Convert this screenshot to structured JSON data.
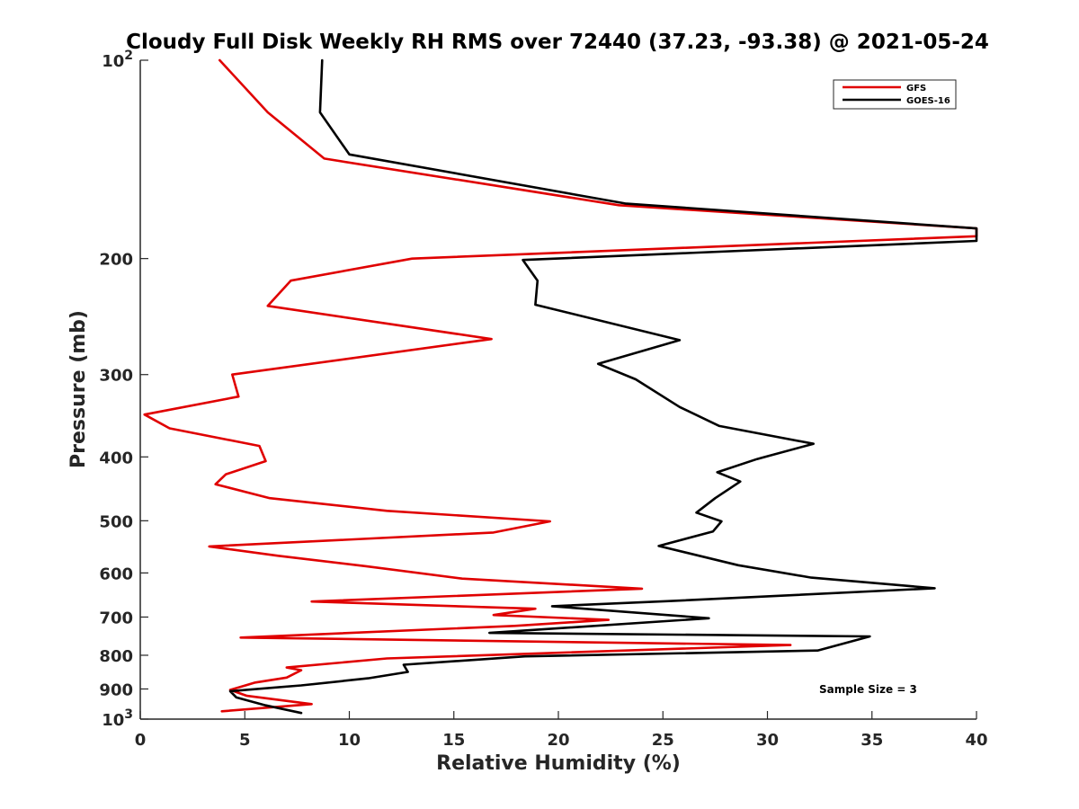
{
  "chart_data": {
    "type": "line",
    "title": "Cloudy Full Disk Weekly RH RMS over 72440 (37.23, -93.38) @ 2021-05-24",
    "xlabel": "Relative Humidity (%)",
    "ylabel": "Pressure (mb)",
    "xlim": [
      0,
      40
    ],
    "ylim": [
      100,
      1000
    ],
    "y_scale": "log",
    "y_reversed": true,
    "grid": false,
    "legend_position": "top-right",
    "x_ticks": [
      {
        "value": 0,
        "label": "0"
      },
      {
        "value": 5,
        "label": "5"
      },
      {
        "value": 10,
        "label": "10"
      },
      {
        "value": 15,
        "label": "15"
      },
      {
        "value": 20,
        "label": "20"
      },
      {
        "value": 25,
        "label": "25"
      },
      {
        "value": 30,
        "label": "30"
      },
      {
        "value": 35,
        "label": "35"
      },
      {
        "value": 40,
        "label": "40"
      }
    ],
    "y_ticks": [
      {
        "value": 100,
        "label": "10",
        "sup": "2"
      },
      {
        "value": 200,
        "label": "200",
        "sup": ""
      },
      {
        "value": 300,
        "label": "300",
        "sup": ""
      },
      {
        "value": 400,
        "label": "400",
        "sup": ""
      },
      {
        "value": 500,
        "label": "500",
        "sup": ""
      },
      {
        "value": 600,
        "label": "600",
        "sup": ""
      },
      {
        "value": 700,
        "label": "700",
        "sup": ""
      },
      {
        "value": 800,
        "label": "800",
        "sup": ""
      },
      {
        "value": 900,
        "label": "900",
        "sup": ""
      },
      {
        "value": 1000,
        "label": "10",
        "sup": "3"
      }
    ],
    "series": [
      {
        "name": "GFS",
        "color": "#e00000",
        "points": [
          [
            3.8,
            100
          ],
          [
            6.1,
            120
          ],
          [
            8.8,
            141
          ],
          [
            22.9,
            166
          ],
          [
            40,
            180
          ],
          [
            40,
            185
          ],
          [
            13.0,
            200
          ],
          [
            7.2,
            216
          ],
          [
            6.1,
            236
          ],
          [
            16.8,
            265
          ],
          [
            4.4,
            300
          ],
          [
            4.7,
            324
          ],
          [
            0.2,
            345
          ],
          [
            1.4,
            362
          ],
          [
            5.7,
            385
          ],
          [
            6.0,
            406
          ],
          [
            4.1,
            425
          ],
          [
            3.6,
            440
          ],
          [
            6.2,
            462
          ],
          [
            11.8,
            483
          ],
          [
            19.6,
            501
          ],
          [
            16.9,
            521
          ],
          [
            3.3,
            547
          ],
          [
            6.6,
            565
          ],
          [
            10.8,
            586
          ],
          [
            15.4,
            612
          ],
          [
            24.0,
            634
          ],
          [
            8.2,
            663
          ],
          [
            18.9,
            680
          ],
          [
            16.9,
            695
          ],
          [
            22.4,
            707
          ],
          [
            17.9,
            722
          ],
          [
            4.8,
            752
          ],
          [
            31.1,
            772
          ],
          [
            11.8,
            809
          ],
          [
            7.0,
            835
          ],
          [
            7.7,
            843
          ],
          [
            7.0,
            865
          ],
          [
            5.5,
            880
          ],
          [
            4.3,
            903
          ],
          [
            5.1,
            922
          ],
          [
            8.2,
            949
          ],
          [
            3.9,
            973
          ]
        ]
      },
      {
        "name": "GOES-16",
        "color": "#000000",
        "points": [
          [
            8.7,
            100
          ],
          [
            8.6,
            120
          ],
          [
            10.0,
            139
          ],
          [
            23.2,
            165
          ],
          [
            40,
            180
          ],
          [
            40,
            188
          ],
          [
            18.3,
            201
          ],
          [
            19.0,
            216
          ],
          [
            18.9,
            235
          ],
          [
            25.8,
            266
          ],
          [
            21.9,
            289
          ],
          [
            23.7,
            305
          ],
          [
            25.8,
            336
          ],
          [
            27.7,
            359
          ],
          [
            32.2,
            382
          ],
          [
            29.5,
            403
          ],
          [
            27.6,
            422
          ],
          [
            28.7,
            436
          ],
          [
            27.5,
            462
          ],
          [
            26.6,
            486
          ],
          [
            27.8,
            501
          ],
          [
            27.4,
            519
          ],
          [
            24.8,
            546
          ],
          [
            28.6,
            584
          ],
          [
            32.1,
            610
          ],
          [
            38.0,
            633
          ],
          [
            25.3,
            662
          ],
          [
            19.7,
            674
          ],
          [
            27.2,
            703
          ],
          [
            16.7,
            740
          ],
          [
            34.9,
            749
          ],
          [
            32.4,
            787
          ],
          [
            18.4,
            803
          ],
          [
            12.6,
            827
          ],
          [
            12.8,
            848
          ],
          [
            10.9,
            867
          ],
          [
            7.7,
            889
          ],
          [
            4.3,
            907
          ],
          [
            4.6,
            927
          ],
          [
            6.0,
            953
          ],
          [
            7.7,
            979
          ]
        ]
      }
    ],
    "annotation": "Sample Size = 3"
  }
}
